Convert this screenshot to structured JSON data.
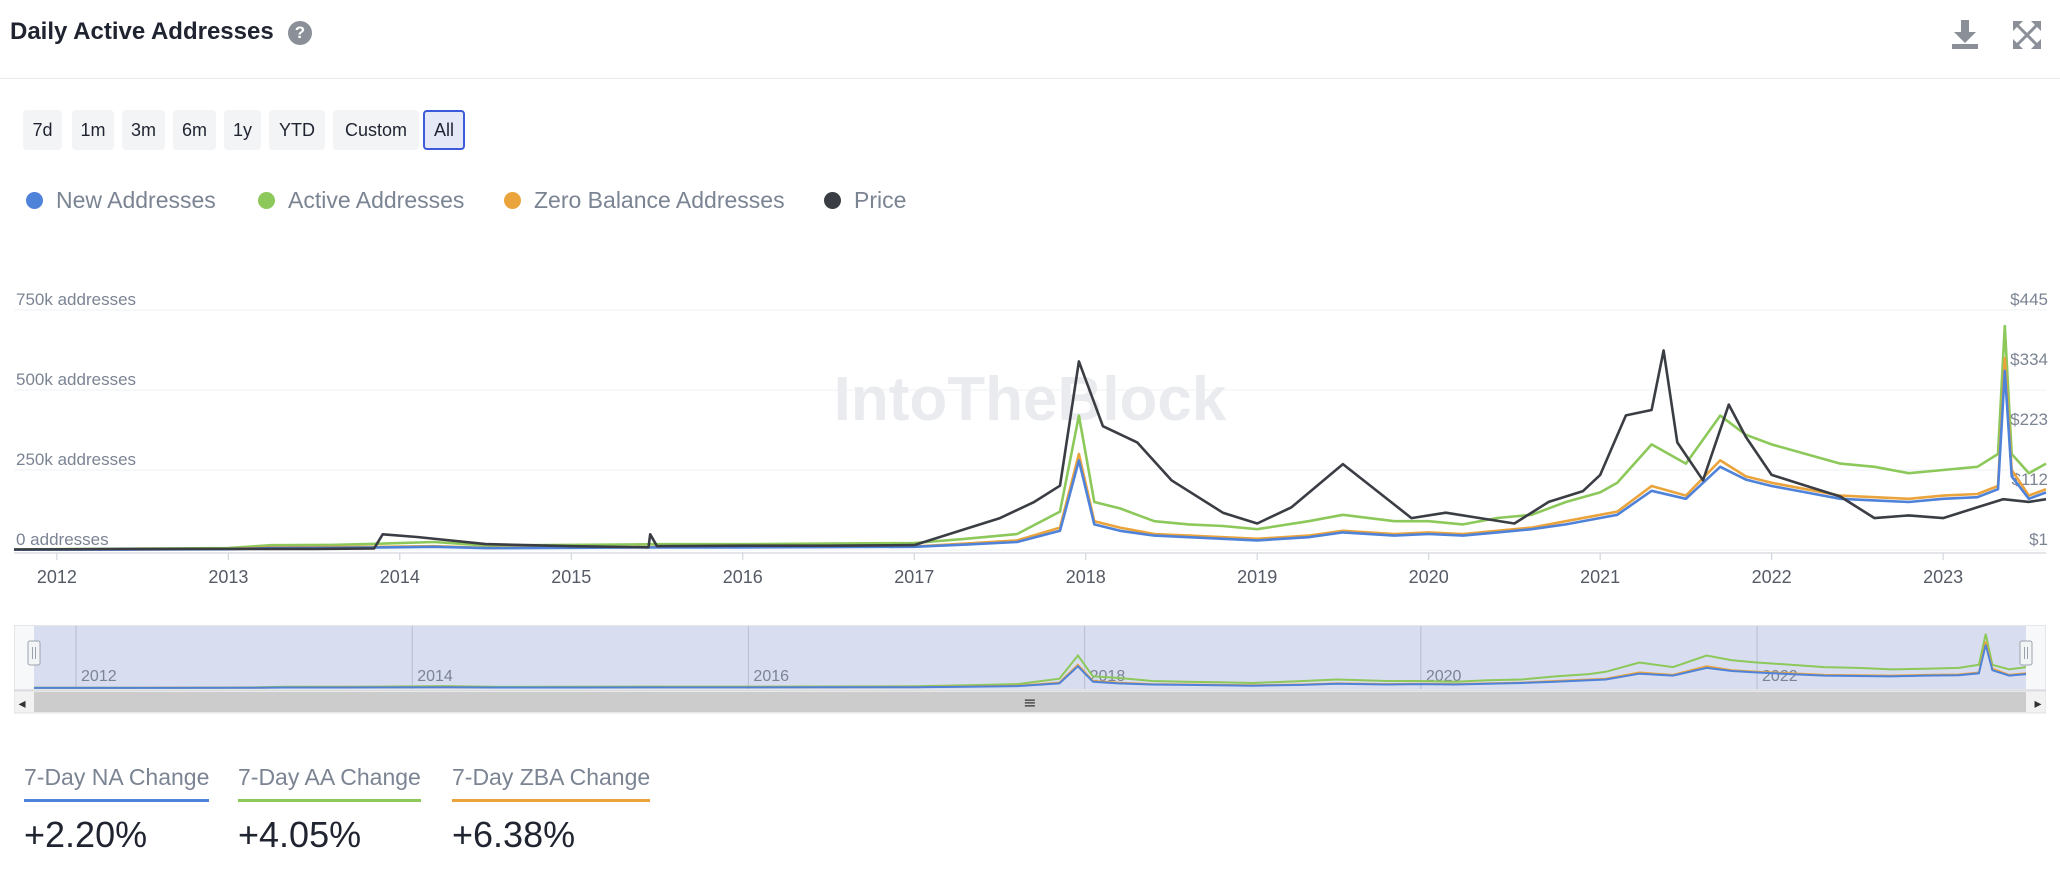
{
  "header": {
    "title": "Daily Active Addresses",
    "help_glyph": "?",
    "icons": [
      "help-icon",
      "download-icon",
      "fullscreen-icon"
    ]
  },
  "range_buttons": [
    {
      "label": "7d",
      "active": false
    },
    {
      "label": "1m",
      "active": false
    },
    {
      "label": "3m",
      "active": false
    },
    {
      "label": "6m",
      "active": false
    },
    {
      "label": "1y",
      "active": false
    },
    {
      "label": "YTD",
      "active": false
    },
    {
      "label": "Custom",
      "active": false
    },
    {
      "label": "All",
      "active": true
    }
  ],
  "legend": [
    {
      "label": "New Addresses",
      "color": "#4f82d9"
    },
    {
      "label": "Active Addresses",
      "color": "#8cc85a"
    },
    {
      "label": "Zero Balance Addresses",
      "color": "#eba43c"
    },
    {
      "label": "Price",
      "color": "#3a3d43"
    }
  ],
  "watermark": "IntoTheBlock",
  "chart_data": {
    "type": "line",
    "title": "Daily Active Addresses",
    "left_axis": {
      "ticks": [
        "0 addresses",
        "250k addresses",
        "500k addresses",
        "750k addresses"
      ],
      "range": [
        0,
        750000
      ]
    },
    "right_axis": {
      "ticks": [
        "$1",
        "$112",
        "$223",
        "$334",
        "$445"
      ],
      "range": [
        1,
        445
      ]
    },
    "x_ticks": [
      "2012",
      "2013",
      "2014",
      "2015",
      "2016",
      "2017",
      "2018",
      "2019",
      "2020",
      "2021",
      "2022",
      "2023"
    ],
    "x_range": [
      2011.75,
      2023.6
    ],
    "grid": true,
    "legend_position": "top-left",
    "series": [
      {
        "name": "Active Addresses",
        "axis": "left",
        "color": "#8cc85a",
        "x": [
          2011.75,
          2012.5,
          2013.0,
          2013.25,
          2013.6,
          2013.9,
          2014.2,
          2014.5,
          2015.0,
          2015.5,
          2016.0,
          2016.5,
          2017.0,
          2017.3,
          2017.6,
          2017.85,
          2017.96,
          2018.05,
          2018.2,
          2018.4,
          2018.6,
          2018.8,
          2019.0,
          2019.3,
          2019.5,
          2019.8,
          2020.0,
          2020.2,
          2020.4,
          2020.6,
          2020.8,
          2021.0,
          2021.1,
          2021.3,
          2021.5,
          2021.7,
          2021.85,
          2022.0,
          2022.2,
          2022.4,
          2022.6,
          2022.8,
          2023.0,
          2023.2,
          2023.32,
          2023.36,
          2023.4,
          2023.5,
          2023.6
        ],
        "values": [
          2000,
          4000,
          6000,
          15000,
          16000,
          20000,
          25000,
          14000,
          16000,
          18000,
          18000,
          20000,
          22000,
          35000,
          50000,
          120000,
          420000,
          150000,
          130000,
          90000,
          80000,
          75000,
          65000,
          90000,
          110000,
          90000,
          90000,
          80000,
          100000,
          110000,
          150000,
          180000,
          210000,
          330000,
          270000,
          420000,
          360000,
          330000,
          300000,
          270000,
          260000,
          240000,
          250000,
          260000,
          300000,
          700000,
          300000,
          240000,
          270000
        ]
      },
      {
        "name": "Zero Balance Addresses",
        "axis": "left",
        "color": "#eba43c",
        "x": [
          2011.75,
          2012.5,
          2013.0,
          2013.25,
          2013.6,
          2013.9,
          2014.2,
          2014.5,
          2015.0,
          2015.5,
          2016.0,
          2016.5,
          2017.0,
          2017.3,
          2017.6,
          2017.85,
          2017.96,
          2018.05,
          2018.2,
          2018.4,
          2018.6,
          2018.8,
          2019.0,
          2019.3,
          2019.5,
          2019.8,
          2020.0,
          2020.2,
          2020.4,
          2020.6,
          2020.8,
          2021.0,
          2021.1,
          2021.3,
          2021.5,
          2021.7,
          2021.85,
          2022.0,
          2022.2,
          2022.4,
          2022.6,
          2022.8,
          2023.0,
          2023.2,
          2023.32,
          2023.36,
          2023.4,
          2023.5,
          2023.6
        ],
        "values": [
          1000,
          2000,
          3000,
          8000,
          9000,
          10000,
          12000,
          7000,
          8000,
          9000,
          9000,
          10000,
          11000,
          20000,
          30000,
          70000,
          300000,
          90000,
          70000,
          50000,
          45000,
          40000,
          35000,
          45000,
          60000,
          50000,
          55000,
          50000,
          60000,
          70000,
          90000,
          110000,
          120000,
          200000,
          170000,
          280000,
          230000,
          210000,
          190000,
          170000,
          165000,
          160000,
          170000,
          175000,
          200000,
          600000,
          250000,
          170000,
          190000
        ]
      },
      {
        "name": "New Addresses",
        "axis": "left",
        "color": "#4f82d9",
        "x": [
          2011.75,
          2012.5,
          2013.0,
          2013.25,
          2013.6,
          2013.9,
          2014.2,
          2014.5,
          2015.0,
          2015.5,
          2016.0,
          2016.5,
          2017.0,
          2017.3,
          2017.6,
          2017.85,
          2017.96,
          2018.05,
          2018.2,
          2018.4,
          2018.6,
          2018.8,
          2019.0,
          2019.3,
          2019.5,
          2019.8,
          2020.0,
          2020.2,
          2020.4,
          2020.6,
          2020.8,
          2021.0,
          2021.1,
          2021.3,
          2021.5,
          2021.7,
          2021.85,
          2022.0,
          2022.2,
          2022.4,
          2022.6,
          2022.8,
          2023.0,
          2023.2,
          2023.32,
          2023.36,
          2023.4,
          2023.5,
          2023.6
        ],
        "values": [
          800,
          1500,
          2500,
          6000,
          7000,
          8000,
          10000,
          6000,
          7000,
          8000,
          8000,
          9000,
          10000,
          17000,
          25000,
          60000,
          280000,
          80000,
          60000,
          45000,
          40000,
          35000,
          30000,
          40000,
          55000,
          45000,
          50000,
          45000,
          55000,
          65000,
          80000,
          100000,
          110000,
          185000,
          160000,
          260000,
          220000,
          200000,
          180000,
          160000,
          155000,
          150000,
          160000,
          165000,
          190000,
          560000,
          230000,
          160000,
          180000
        ]
      },
      {
        "name": "Price",
        "axis": "right",
        "color": "#3a3d43",
        "x": [
          2011.75,
          2012.5,
          2013.0,
          2013.5,
          2013.85,
          2013.9,
          2014.1,
          2014.5,
          2015.0,
          2015.45,
          2015.46,
          2015.5,
          2016.0,
          2016.5,
          2017.0,
          2017.3,
          2017.5,
          2017.7,
          2017.85,
          2017.96,
          2018.1,
          2018.3,
          2018.5,
          2018.8,
          2019.0,
          2019.2,
          2019.5,
          2019.7,
          2019.9,
          2020.1,
          2020.3,
          2020.5,
          2020.7,
          2020.9,
          2021.0,
          2021.15,
          2021.3,
          2021.37,
          2021.45,
          2021.6,
          2021.75,
          2021.85,
          2022.0,
          2022.2,
          2022.4,
          2022.6,
          2022.8,
          2023.0,
          2023.2,
          2023.35,
          2023.5,
          2023.6
        ],
        "values": [
          2,
          3,
          3,
          3,
          4,
          30,
          25,
          12,
          8,
          6,
          30,
          8,
          9,
          9,
          10,
          40,
          60,
          90,
          120,
          350,
          230,
          200,
          130,
          70,
          50,
          80,
          160,
          110,
          60,
          70,
          60,
          50,
          90,
          110,
          140,
          250,
          260,
          370,
          200,
          130,
          270,
          210,
          140,
          120,
          100,
          60,
          65,
          60,
          80,
          95,
          90,
          95
        ]
      }
    ]
  },
  "navigator": {
    "labels": [
      "2012",
      "2014",
      "2016",
      "2018",
      "2020",
      "2022"
    ],
    "handle_glyph": "≡",
    "left_arrow": "◂",
    "right_arrow": "▸"
  },
  "stats": [
    {
      "label": "7-Day NA Change",
      "value": "+2.20%",
      "color": "#4f82d9"
    },
    {
      "label": "7-Day AA Change",
      "value": "+4.05%",
      "color": "#8cc85a"
    },
    {
      "label": "7-Day ZBA Change",
      "value": "+6.38%",
      "color": "#eba43c"
    }
  ]
}
